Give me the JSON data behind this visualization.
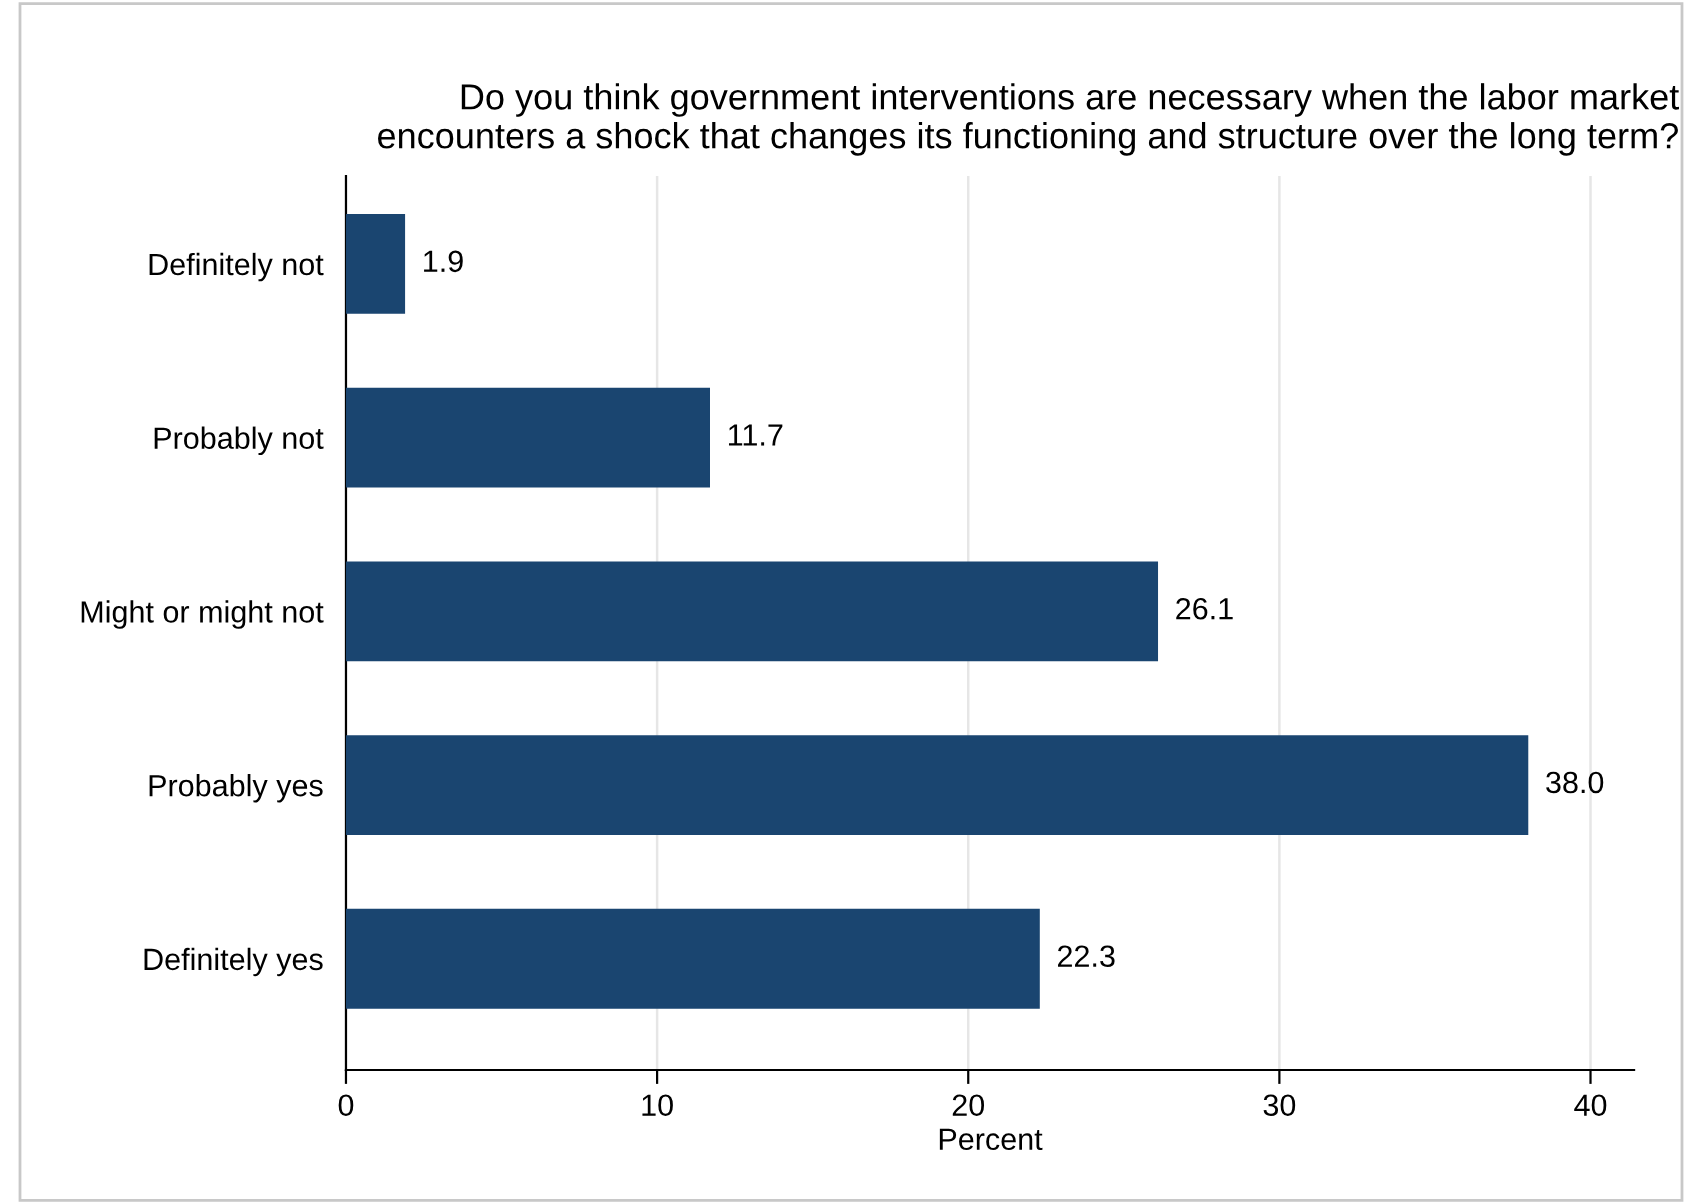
{
  "chart_data": {
    "type": "bar",
    "orientation": "horizontal",
    "title": "Do you think government interventions are necessary when the labor market\nencounters a shock that changes its functioning and structure over the long term?",
    "xlabel": "Percent",
    "categories": [
      "Definitely not",
      "Probably not",
      "Might or might not",
      "Probably yes",
      "Definitely yes"
    ],
    "values": [
      1.9,
      11.7,
      26.1,
      38.0,
      22.3
    ],
    "value_labels": [
      "1.9",
      "11.7",
      "26.1",
      "38.0",
      "22.3"
    ],
    "color": "#1a4570",
    "xlim": [
      0,
      41.4
    ],
    "xticks": [
      0,
      10,
      20,
      30,
      40
    ],
    "grid": "x",
    "legend": false
  }
}
